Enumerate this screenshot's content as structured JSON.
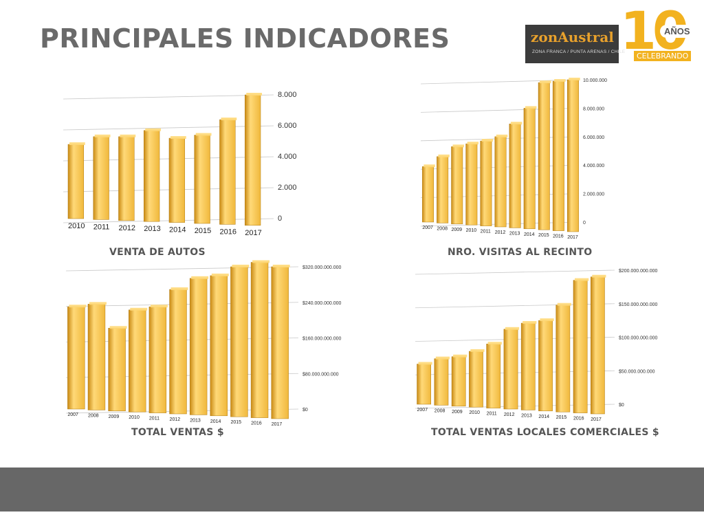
{
  "page": {
    "title": "PRINCIPALES INDICADORES",
    "logo": {
      "name": "zonAustral",
      "tagline": "ZONA FRANCA / PUNTA ARENAS / CHILE",
      "anniversary_number": "10",
      "anniversary_word": "AÑOS",
      "celebrating": "CELEBRANDO"
    },
    "colors": {
      "bar": "#f0b83c",
      "bar_dark": "#c98a14",
      "bar_light": "#ffd978",
      "title": "#6a6a6a",
      "footer": "#676767"
    }
  },
  "chart_data": [
    {
      "type": "bar",
      "caption": "VENTA DE AUTOS",
      "categories": [
        "2010",
        "2011",
        "2012",
        "2013",
        "2014",
        "2015",
        "2016",
        "2017"
      ],
      "values": [
        4800,
        5300,
        5300,
        5700,
        5200,
        5400,
        6400,
        8000
      ],
      "ylim": [
        0,
        8000
      ],
      "yticks": [
        "0",
        "2.000",
        "4.000",
        "6.000",
        "8.000"
      ],
      "axis_side": "right"
    },
    {
      "type": "bar",
      "caption": "NRO. VISITAS AL RECINTO",
      "categories": [
        "2007",
        "2008",
        "2009",
        "2010",
        "2011",
        "2012",
        "2013",
        "2014",
        "2015",
        "2016",
        "2017"
      ],
      "values": [
        3900000,
        4600000,
        5300000,
        5500000,
        5700000,
        6000000,
        6900000,
        8000000,
        9800000,
        9900000,
        10000000
      ],
      "ylim": [
        0,
        10000000
      ],
      "yticks": [
        "0",
        "2.000.000",
        "4.000.000",
        "6.000.000",
        "8.000.000",
        "10.000.000"
      ],
      "axis_side": "right"
    },
    {
      "type": "bar",
      "caption": "TOTAL VENTAS $",
      "categories": [
        "2007",
        "2008",
        "2009",
        "2010",
        "2011",
        "2012",
        "2013",
        "2014",
        "2015",
        "2016",
        "2017"
      ],
      "values": [
        230000000000,
        236000000000,
        182000000000,
        223000000000,
        230000000000,
        269000000000,
        294000000000,
        300000000000,
        320000000000,
        330000000000,
        320000000000
      ],
      "ylim": [
        0,
        320000000000
      ],
      "yticks": [
        "$0",
        "$80.000.000.000",
        "$160.000.000.000",
        "$240.000.000.000",
        "$320.000.000.000"
      ],
      "axis_side": "right"
    },
    {
      "type": "bar",
      "caption": "TOTAL VENTAS LOCALES COMERCIALES $",
      "categories": [
        "2007",
        "2008",
        "2009",
        "2010",
        "2011",
        "2012",
        "2013",
        "2014",
        "2015",
        "2016",
        "2017"
      ],
      "values": [
        60000000000,
        68000000000,
        71000000000,
        79000000000,
        90000000000,
        112000000000,
        121000000000,
        125000000000,
        148000000000,
        185000000000,
        190000000000
      ],
      "ylim": [
        0,
        200000000000
      ],
      "yticks": [
        "$0",
        "$50.000.000.000",
        "$100.000.000.000",
        "$150.000.000.000",
        "$200.000.000.000"
      ],
      "axis_side": "right"
    }
  ]
}
